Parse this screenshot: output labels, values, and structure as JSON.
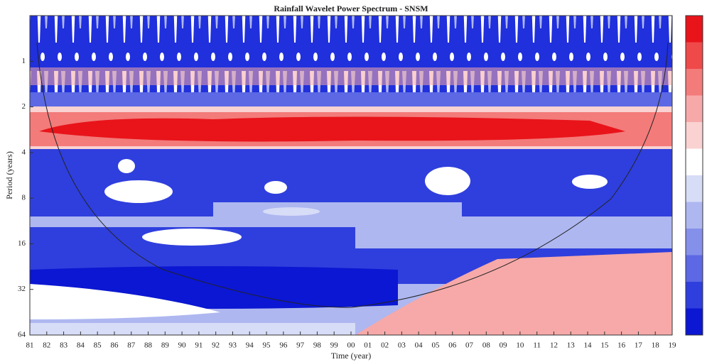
{
  "chart_data": {
    "type": "contour",
    "title": "Rainfall Wavelet Power Spectrum - SNSM",
    "x_label": "Time (year)",
    "y_label": "Period (years)",
    "xticks": [
      "81",
      "82",
      "83",
      "84",
      "85",
      "86",
      "87",
      "88",
      "89",
      "90",
      "91",
      "92",
      "93",
      "94",
      "95",
      "96",
      "97",
      "98",
      "99",
      "00",
      "01",
      "02",
      "03",
      "04",
      "05",
      "06",
      "07",
      "08",
      "09",
      "10",
      "11",
      "12",
      "13",
      "14",
      "15",
      "16",
      "17",
      "18",
      "19"
    ],
    "ylim": [
      0.5,
      64
    ],
    "log_y": true,
    "y_inverted": true,
    "yticks": [
      1,
      2,
      4,
      8,
      16,
      32,
      64
    ],
    "colorbar_colors": [
      "#e8141a",
      "#f0494a",
      "#f37b7a",
      "#f6a9a8",
      "#f9d2d1",
      "#ffffff",
      "#d7dcf7",
      "#aeb7f0",
      "#8590ea",
      "#5c68e4",
      "#2f3fdd",
      "#0b17d2"
    ]
  }
}
